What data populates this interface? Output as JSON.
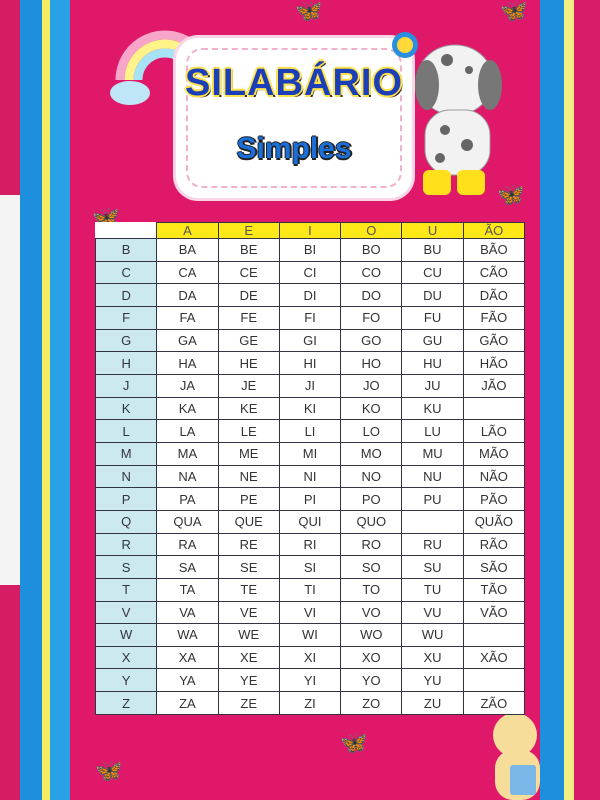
{
  "poster": {
    "title": "SILABÁRIO",
    "subtitle": "Simples",
    "colors": {
      "background": "#e0186a",
      "header": "#ffe817",
      "consonant_column": "#cde9f0",
      "title": "#1a3fb8"
    },
    "table": {
      "headers": [
        "A",
        "E",
        "I",
        "O",
        "U",
        "ÃO"
      ],
      "rows": [
        {
          "c": "B",
          "s": [
            "BA",
            "BE",
            "BI",
            "BO",
            "BU",
            "BÃO"
          ]
        },
        {
          "c": "C",
          "s": [
            "CA",
            "CE",
            "CI",
            "CO",
            "CU",
            "CÃO"
          ]
        },
        {
          "c": "D",
          "s": [
            "DA",
            "DE",
            "DI",
            "DO",
            "DU",
            "DÃO"
          ]
        },
        {
          "c": "F",
          "s": [
            "FA",
            "FE",
            "FI",
            "FO",
            "FU",
            "FÃO"
          ]
        },
        {
          "c": "G",
          "s": [
            "GA",
            "GE",
            "GI",
            "GO",
            "GU",
            "GÃO"
          ]
        },
        {
          "c": "H",
          "s": [
            "HA",
            "HE",
            "HI",
            "HO",
            "HU",
            "HÃO"
          ]
        },
        {
          "c": "J",
          "s": [
            "JA",
            "JE",
            "JI",
            "JO",
            "JU",
            "JÃO"
          ]
        },
        {
          "c": "K",
          "s": [
            "KA",
            "KE",
            "KI",
            "KO",
            "KU",
            ""
          ]
        },
        {
          "c": "L",
          "s": [
            "LA",
            "LE",
            "LI",
            "LO",
            "LU",
            "LÃO"
          ]
        },
        {
          "c": "M",
          "s": [
            "MA",
            "ME",
            "MI",
            "MO",
            "MU",
            "MÃO"
          ]
        },
        {
          "c": "N",
          "s": [
            "NA",
            "NE",
            "NI",
            "NO",
            "NU",
            "NÃO"
          ]
        },
        {
          "c": "P",
          "s": [
            "PA",
            "PE",
            "PI",
            "PO",
            "PU",
            "PÃO"
          ]
        },
        {
          "c": "Q",
          "s": [
            "QUA",
            "QUE",
            "QUI",
            "QUO",
            "",
            "QUÃO"
          ]
        },
        {
          "c": "R",
          "s": [
            "RA",
            "RE",
            "RI",
            "RO",
            "RU",
            "RÃO"
          ]
        },
        {
          "c": "S",
          "s": [
            "SA",
            "SE",
            "SI",
            "SO",
            "SU",
            "SÃO"
          ]
        },
        {
          "c": "T",
          "s": [
            "TA",
            "TE",
            "TI",
            "TO",
            "TU",
            "TÃO"
          ]
        },
        {
          "c": "V",
          "s": [
            "VA",
            "VE",
            "VI",
            "VO",
            "VU",
            "VÃO"
          ]
        },
        {
          "c": "W",
          "s": [
            "WA",
            "WE",
            "WI",
            "WO",
            "WU",
            ""
          ]
        },
        {
          "c": "X",
          "s": [
            "XA",
            "XE",
            "XI",
            "XO",
            "XU",
            "XÃO"
          ]
        },
        {
          "c": "Y",
          "s": [
            "YA",
            "YE",
            "YI",
            "YO",
            "YU",
            ""
          ]
        },
        {
          "c": "Z",
          "s": [
            "ZA",
            "ZE",
            "ZI",
            "ZO",
            "ZU",
            "ZÃO"
          ]
        }
      ]
    },
    "decorations": [
      "rainbow-icon",
      "dalmatian-puppy-icon",
      "butterfly-icon",
      "flower-icon",
      "teddy-bear-icon"
    ]
  }
}
